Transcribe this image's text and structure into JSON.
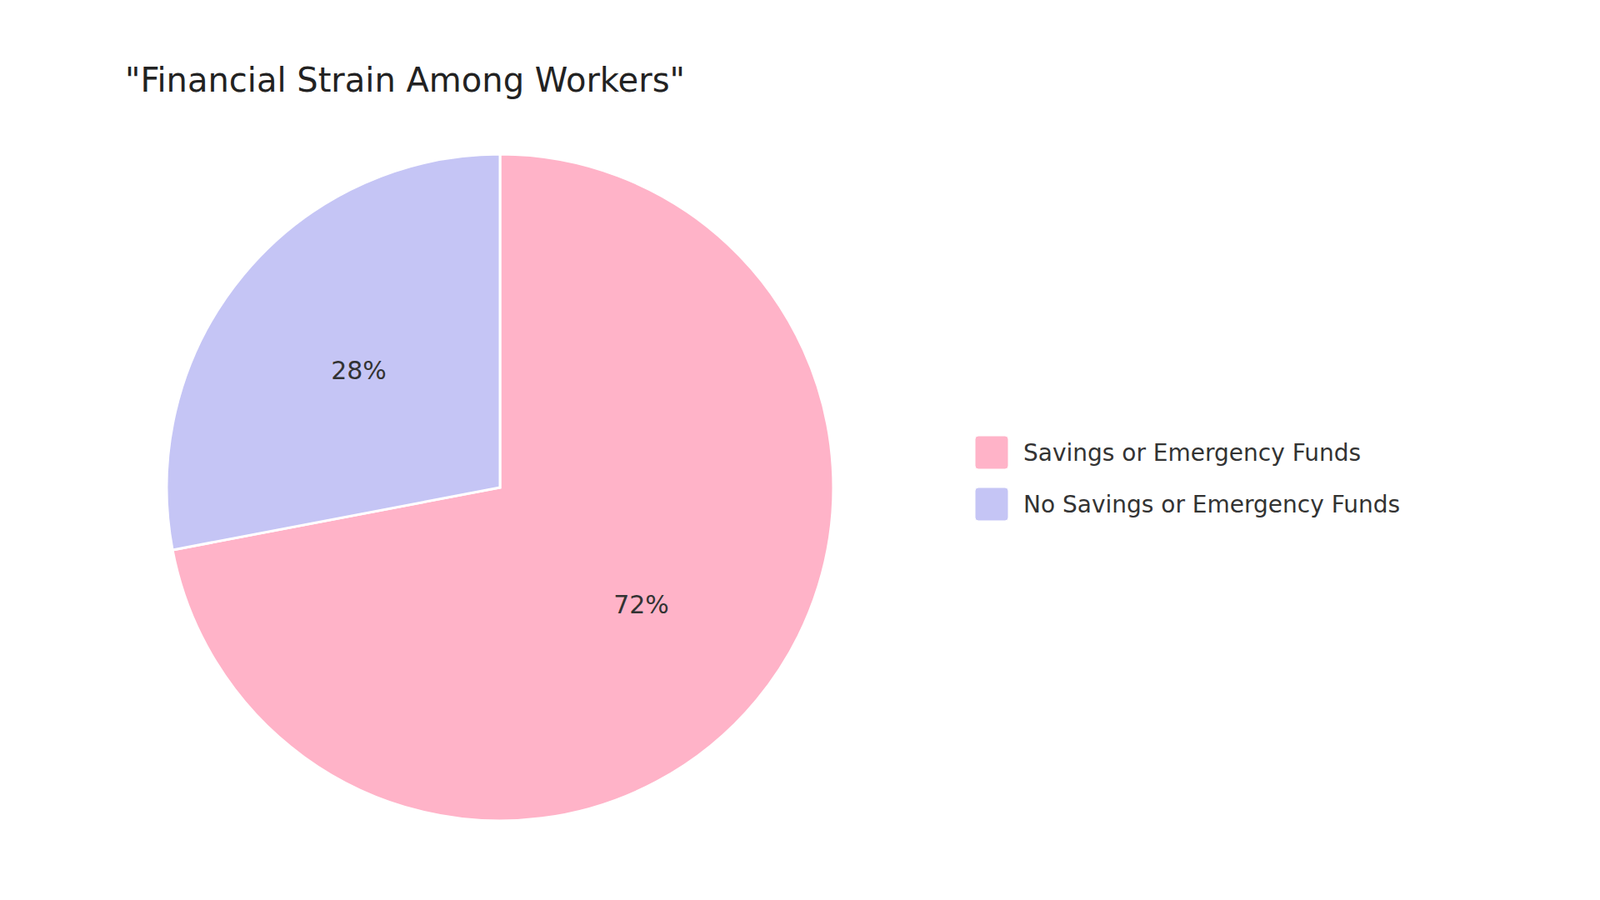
{
  "chart_data": {
    "type": "pie",
    "title": "\"Financial Strain Among Workers\"",
    "categories": [
      "Savings or Emergency Funds",
      "No Savings or Emergency Funds"
    ],
    "values": [
      72,
      28
    ],
    "value_labels": [
      "72%",
      "28%"
    ],
    "colors": [
      "#FFB3C8",
      "#C5C5F5"
    ],
    "data_labels": true,
    "legend": "right"
  }
}
